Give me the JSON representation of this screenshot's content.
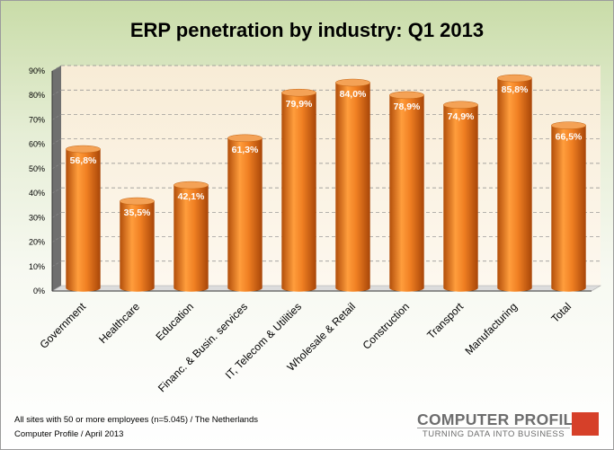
{
  "chart_data": {
    "type": "bar",
    "title": "ERP penetration by industry: Q1 2013",
    "categories": [
      "Government",
      "Healthcare",
      "Education",
      "Financ. & Busin. services",
      "IT, Telecom & Utilities",
      "Wholesale & Retail",
      "Construction",
      "Transport",
      "Manufacturing",
      "Total"
    ],
    "values": [
      56.8,
      35.5,
      42.1,
      61.3,
      79.9,
      84.0,
      78.9,
      74.9,
      85.8,
      66.5
    ],
    "value_labels": [
      "56,8%",
      "35,5%",
      "42,1%",
      "61,3%",
      "79,9%",
      "84,0%",
      "78,9%",
      "74,9%",
      "85,8%",
      "66,5%"
    ],
    "ylim": [
      0,
      90
    ],
    "yticks": [
      0,
      10,
      20,
      30,
      40,
      50,
      60,
      70,
      80,
      90
    ],
    "ytick_labels": [
      "0%",
      "10%",
      "20%",
      "30%",
      "40%",
      "50%",
      "60%",
      "70%",
      "80%",
      "90%"
    ],
    "xlabel": "",
    "ylabel": "",
    "grid": true,
    "legend": "none",
    "colors": {
      "bar": "#e8741b",
      "bar_light": "#ff9d3c",
      "bar_dark": "#b24e0a",
      "frame_top": "#c9dca8",
      "plot_wall": "#fbf3e4"
    }
  },
  "footnote": {
    "line1": "All sites with 50 or more employees (n=5.045) / The Netherlands",
    "line2": "Computer Profile / April 2013"
  },
  "logo": {
    "name": "COMPUTER PROFILE",
    "tagline": "TURNING DATA INTO BUSINESS",
    "color": "#d64029"
  }
}
